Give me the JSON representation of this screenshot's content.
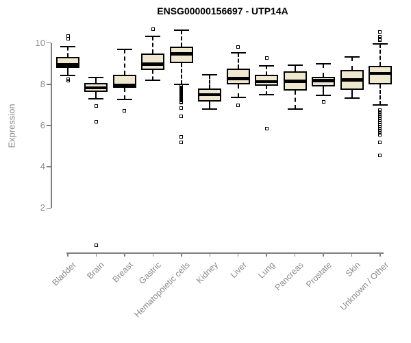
{
  "title": "ENSG00000156697 - UTP14A",
  "chart_data": {
    "type": "boxplot",
    "title": "ENSG00000156697 - UTP14A",
    "ylabel": "Expression",
    "xlabel": "",
    "y_ticks": [
      2,
      4,
      6,
      8,
      10
    ],
    "ylim": [
      2,
      10
    ],
    "grid": false,
    "legend": "none",
    "whisker_line_style": "dashed",
    "outlier_marker": "open-square",
    "categories": [
      "Bladder",
      "Brain",
      "Breast",
      "Gastric",
      "Hematopoietic cells",
      "Kidney",
      "Liver",
      "Lung",
      "Pancreas",
      "Prostate",
      "Skin",
      "Unknown / Other"
    ],
    "series": [
      {
        "category": "Bladder",
        "whisker_low": 8.43,
        "q1": 8.79,
        "median": 8.95,
        "q3": 9.32,
        "whisker_high": 9.84,
        "outliers": [
          10.35,
          10.2,
          8.25,
          8.18
        ]
      },
      {
        "category": "Brain",
        "whisker_low": 7.31,
        "q1": 7.62,
        "median": 7.83,
        "q3": 8.07,
        "whisker_high": 8.34,
        "outliers": [
          6.95,
          6.2,
          0.2
        ]
      },
      {
        "category": "Breast",
        "whisker_low": 7.27,
        "q1": 7.84,
        "median": 7.97,
        "q3": 8.46,
        "whisker_high": 9.68,
        "outliers": [
          6.7
        ]
      },
      {
        "category": "Gastric",
        "whisker_low": 8.2,
        "q1": 8.68,
        "median": 8.97,
        "q3": 9.5,
        "whisker_high": 10.31,
        "outliers": [
          10.68
        ]
      },
      {
        "category": "Hematopoietic cells",
        "whisker_low": 8.0,
        "q1": 9.03,
        "median": 9.47,
        "q3": 9.82,
        "whisker_high": 10.62,
        "outliers": [
          7.9,
          7.85,
          7.8,
          7.75,
          7.7,
          7.65,
          7.6,
          7.55,
          7.5,
          7.45,
          7.4,
          7.35,
          7.3,
          7.25,
          7.2,
          7.15,
          7.1,
          6.85,
          6.45,
          5.45,
          5.2
        ]
      },
      {
        "category": "Kidney",
        "whisker_low": 6.81,
        "q1": 7.18,
        "median": 7.49,
        "q3": 7.81,
        "whisker_high": 8.46,
        "outliers": []
      },
      {
        "category": "Liver",
        "whisker_low": 7.35,
        "q1": 8.01,
        "median": 8.27,
        "q3": 8.76,
        "whisker_high": 9.53,
        "outliers": [
          9.82,
          6.97
        ]
      },
      {
        "category": "Lung",
        "whisker_low": 7.51,
        "q1": 7.92,
        "median": 8.13,
        "q3": 8.46,
        "whisker_high": 8.9,
        "outliers": [
          9.29,
          5.85
        ]
      },
      {
        "category": "Pancreas",
        "whisker_low": 6.79,
        "q1": 7.7,
        "median": 8.14,
        "q3": 8.64,
        "whisker_high": 8.92,
        "outliers": []
      },
      {
        "category": "Prostate",
        "whisker_low": 7.48,
        "q1": 7.9,
        "median": 8.18,
        "q3": 8.37,
        "whisker_high": 8.99,
        "outliers": [
          7.14
        ]
      },
      {
        "category": "Skin",
        "whisker_low": 7.33,
        "q1": 7.74,
        "median": 8.21,
        "q3": 8.68,
        "whisker_high": 9.33,
        "outliers": []
      },
      {
        "category": "Unknown / Other",
        "whisker_low": 7.01,
        "q1": 7.99,
        "median": 8.52,
        "q3": 8.88,
        "whisker_high": 9.95,
        "outliers": [
          10.55,
          10.3,
          10.22,
          10.14,
          6.75,
          6.65,
          6.55,
          6.45,
          6.35,
          6.25,
          6.15,
          6.05,
          5.95,
          5.85,
          5.75,
          5.65,
          5.55,
          5.2,
          4.55
        ]
      }
    ],
    "style": {
      "box_fill": "#efe8cf",
      "box_border": "#000000",
      "median_color": "#000000",
      "axis_color": "#7f7f7f",
      "tick_label_color": "#8a8a8a",
      "title_color": "#000000",
      "background": "#ffffff"
    }
  }
}
